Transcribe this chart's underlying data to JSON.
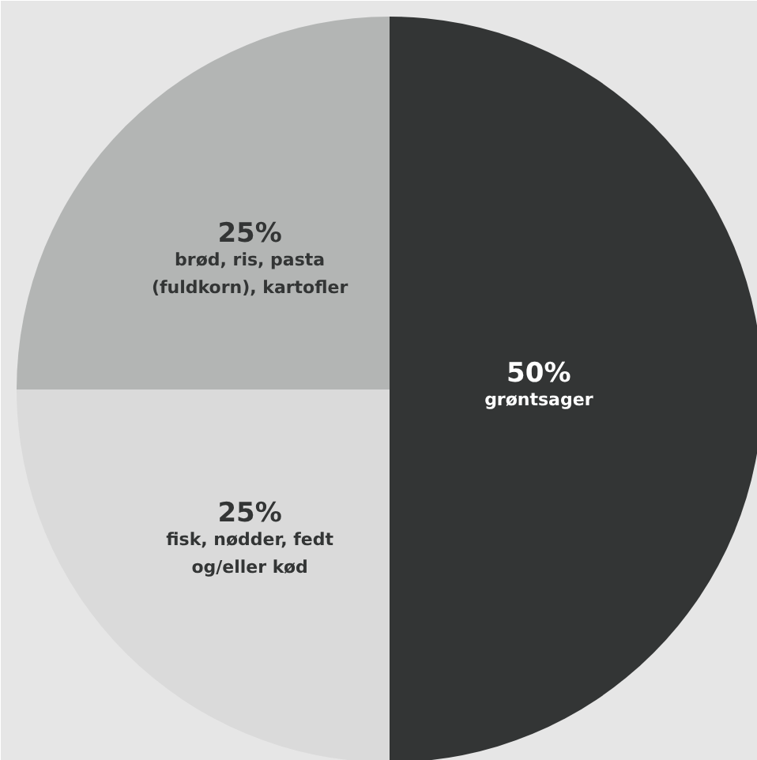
{
  "chart_data": {
    "type": "pie",
    "categories": [
      "grøntsager",
      "fisk, nødder, fedt\nog/eller kød",
      "brød, ris, pasta\n(fuldkorn), kartofler"
    ],
    "values": [
      50,
      25,
      25
    ],
    "colors": [
      "#333535",
      "#dadada",
      "#b3b5b4"
    ],
    "value_labels": [
      "50%",
      "25%",
      "25%"
    ]
  }
}
